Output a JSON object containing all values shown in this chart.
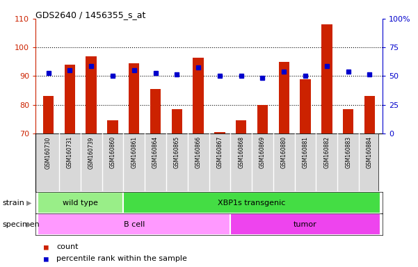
{
  "title": "GDS2640 / 1456355_s_at",
  "samples": [
    "GSM160730",
    "GSM160731",
    "GSM160739",
    "GSM160860",
    "GSM160861",
    "GSM160864",
    "GSM160865",
    "GSM160866",
    "GSM160867",
    "GSM160868",
    "GSM160869",
    "GSM160880",
    "GSM160881",
    "GSM160882",
    "GSM160883",
    "GSM160884"
  ],
  "counts": [
    83,
    94,
    97,
    74.5,
    94.5,
    85.5,
    78.5,
    96.5,
    70.5,
    74.5,
    80,
    95,
    89,
    108,
    78.5,
    83
  ],
  "percentiles": [
    91,
    92,
    93.5,
    90,
    92,
    91,
    90.5,
    93,
    90,
    90,
    89.5,
    91.5,
    90,
    93.5,
    91.5,
    90.5
  ],
  "strain_groups": [
    {
      "label": "wild type",
      "start": 0,
      "end": 4,
      "color": "#99EE88"
    },
    {
      "label": "XBP1s transgenic",
      "start": 4,
      "end": 16,
      "color": "#44DD44"
    }
  ],
  "specimen_groups": [
    {
      "label": "B cell",
      "start": 0,
      "end": 9,
      "color": "#FF99FF"
    },
    {
      "label": "tumor",
      "start": 9,
      "end": 16,
      "color": "#EE44EE"
    }
  ],
  "ylim_left": [
    70,
    110
  ],
  "yticks_left": [
    70,
    80,
    90,
    100,
    110
  ],
  "ytick_labels_right": [
    "0",
    "25",
    "50",
    "75",
    "100%"
  ],
  "bar_color": "#CC2200",
  "percentile_color": "#0000CC",
  "bar_width": 0.5,
  "bg_color": "#D8D8D8",
  "left_label_color": "#CC2200",
  "right_label_color": "#0000CC"
}
